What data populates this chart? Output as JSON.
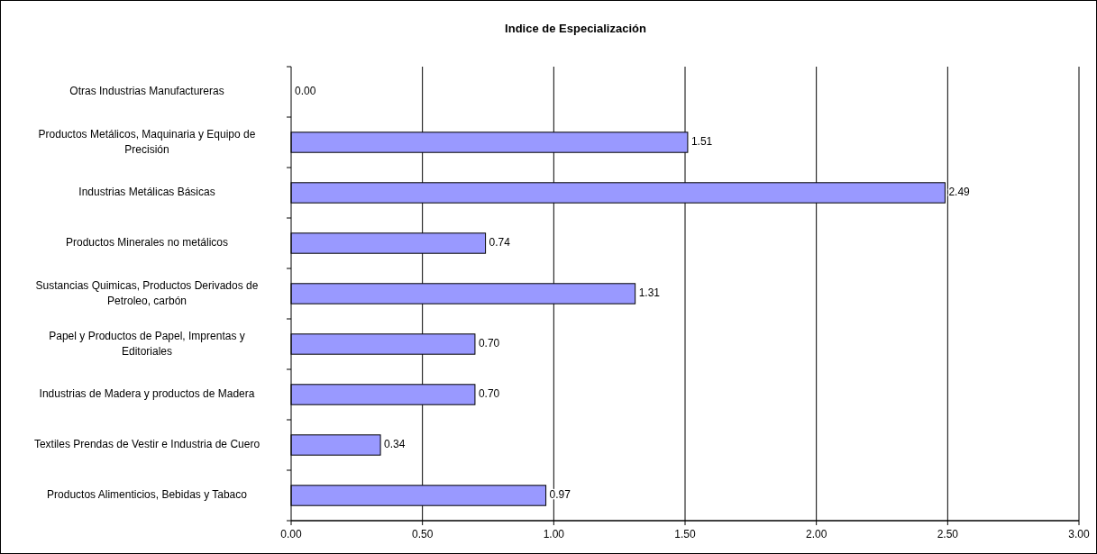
{
  "chart_data": {
    "type": "bar",
    "orientation": "horizontal",
    "title": "Indice de Especialización",
    "categories": [
      "Otras Industrias Manufactureras",
      "Productos Metálicos, Maquinaria y Equipo de Precisión",
      "Industrias Metálicas Básicas",
      "Productos Minerales no metálicos",
      "Sustancias Quimicas, Productos Derivados de Petroleo, carbón",
      "Papel y Productos de Papel, Imprentas y Editoriales",
      "Industrias de Madera y productos de Madera",
      "Textiles Prendas de Vestir e Industria de Cuero",
      "Productos Alimenticios, Bebidas y Tabaco"
    ],
    "values": [
      0.0,
      1.51,
      2.49,
      0.74,
      1.31,
      0.7,
      0.7,
      0.34,
      0.97
    ],
    "value_labels": [
      "0.00",
      "1.51",
      "2.49",
      "0.74",
      "1.31",
      "0.70",
      "0.70",
      "0.34",
      "0.97"
    ],
    "color": "#9999ff",
    "xlim": [
      0,
      3
    ],
    "xticks": [
      {
        "value": 0,
        "label": "0.00"
      },
      {
        "value": 0.5,
        "label": "0.50"
      },
      {
        "value": 1,
        "label": "1.00"
      },
      {
        "value": 1.5,
        "label": "1.50"
      },
      {
        "value": 2,
        "label": "2.00"
      },
      {
        "value": 2.5,
        "label": "2.50"
      },
      {
        "value": 3,
        "label": "3.00"
      }
    ],
    "grid": "x"
  }
}
